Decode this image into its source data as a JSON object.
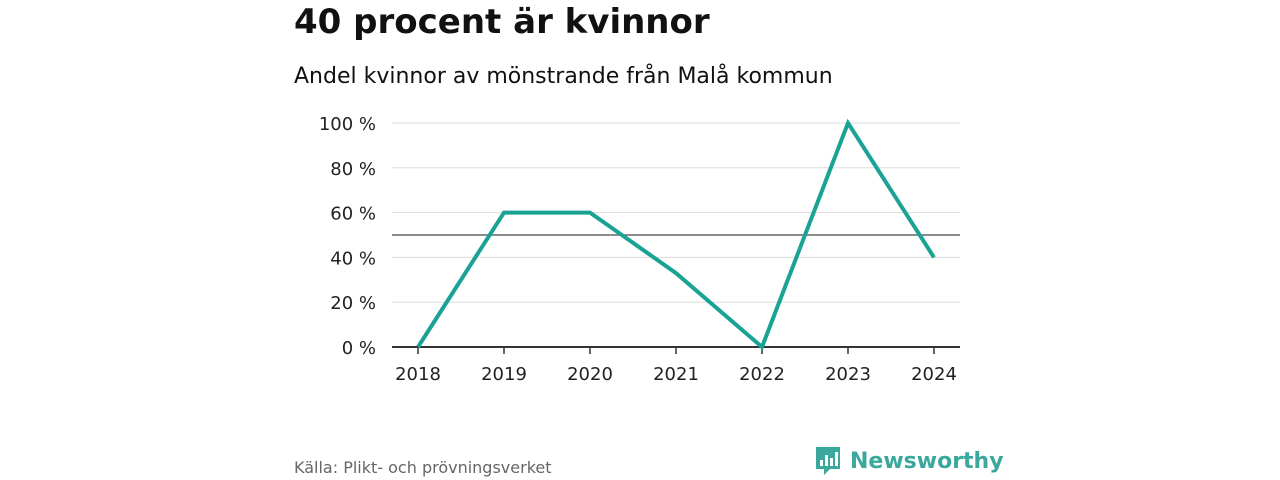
{
  "header": {
    "title": "40 procent är kvinnor",
    "subtitle": "Andel kvinnor av mönstrande från Malå kommun"
  },
  "footer": {
    "source": "Källa: Plikt- och prövningsverket",
    "brand": "Newsworthy"
  },
  "colors": {
    "line": "#1aa394",
    "grid": "#dddddd",
    "reference": "#666666",
    "axis": "#333333",
    "brand": "#3aa89d"
  },
  "chart_data": {
    "type": "line",
    "categories": [
      "2018",
      "2019",
      "2020",
      "2021",
      "2022",
      "2023",
      "2024"
    ],
    "series": [
      {
        "values": [
          0,
          60,
          60,
          33,
          0,
          100,
          40
        ]
      }
    ],
    "reference_line": 50,
    "ylim": [
      0,
      100
    ],
    "yticks": [
      0,
      20,
      40,
      60,
      80,
      100
    ],
    "ytick_labels": [
      "0 %",
      "20 %",
      "40 %",
      "60 %",
      "80 %",
      "100 %"
    ],
    "grid": true,
    "xlabel": "",
    "ylabel": ""
  }
}
